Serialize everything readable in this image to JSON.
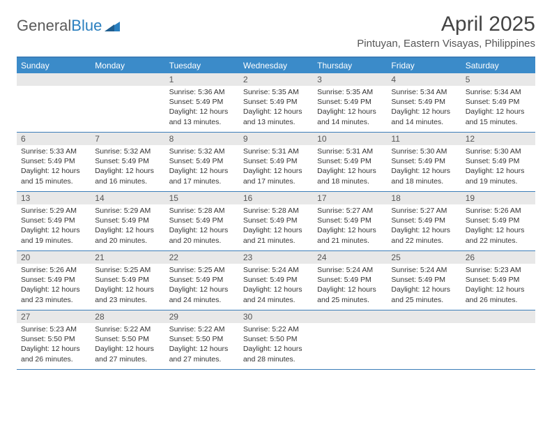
{
  "logo": {
    "text1": "General",
    "text2": "Blue"
  },
  "title": "April 2025",
  "location": "Pintuyan, Eastern Visayas, Philippines",
  "colors": {
    "header_bg": "#3b8bc9",
    "header_text": "#ffffff",
    "border": "#3b7db8",
    "daynum_bg": "#e8e8e8",
    "body_text": "#333333",
    "logo_gray": "#5a5a5a",
    "logo_blue": "#2a7fbf"
  },
  "day_names": [
    "Sunday",
    "Monday",
    "Tuesday",
    "Wednesday",
    "Thursday",
    "Friday",
    "Saturday"
  ],
  "weeks": [
    [
      null,
      null,
      {
        "n": "1",
        "sr": "5:36 AM",
        "ss": "5:49 PM",
        "dl": "12 hours and 13 minutes."
      },
      {
        "n": "2",
        "sr": "5:35 AM",
        "ss": "5:49 PM",
        "dl": "12 hours and 13 minutes."
      },
      {
        "n": "3",
        "sr": "5:35 AM",
        "ss": "5:49 PM",
        "dl": "12 hours and 14 minutes."
      },
      {
        "n": "4",
        "sr": "5:34 AM",
        "ss": "5:49 PM",
        "dl": "12 hours and 14 minutes."
      },
      {
        "n": "5",
        "sr": "5:34 AM",
        "ss": "5:49 PM",
        "dl": "12 hours and 15 minutes."
      }
    ],
    [
      {
        "n": "6",
        "sr": "5:33 AM",
        "ss": "5:49 PM",
        "dl": "12 hours and 15 minutes."
      },
      {
        "n": "7",
        "sr": "5:32 AM",
        "ss": "5:49 PM",
        "dl": "12 hours and 16 minutes."
      },
      {
        "n": "8",
        "sr": "5:32 AM",
        "ss": "5:49 PM",
        "dl": "12 hours and 17 minutes."
      },
      {
        "n": "9",
        "sr": "5:31 AM",
        "ss": "5:49 PM",
        "dl": "12 hours and 17 minutes."
      },
      {
        "n": "10",
        "sr": "5:31 AM",
        "ss": "5:49 PM",
        "dl": "12 hours and 18 minutes."
      },
      {
        "n": "11",
        "sr": "5:30 AM",
        "ss": "5:49 PM",
        "dl": "12 hours and 18 minutes."
      },
      {
        "n": "12",
        "sr": "5:30 AM",
        "ss": "5:49 PM",
        "dl": "12 hours and 19 minutes."
      }
    ],
    [
      {
        "n": "13",
        "sr": "5:29 AM",
        "ss": "5:49 PM",
        "dl": "12 hours and 19 minutes."
      },
      {
        "n": "14",
        "sr": "5:29 AM",
        "ss": "5:49 PM",
        "dl": "12 hours and 20 minutes."
      },
      {
        "n": "15",
        "sr": "5:28 AM",
        "ss": "5:49 PM",
        "dl": "12 hours and 20 minutes."
      },
      {
        "n": "16",
        "sr": "5:28 AM",
        "ss": "5:49 PM",
        "dl": "12 hours and 21 minutes."
      },
      {
        "n": "17",
        "sr": "5:27 AM",
        "ss": "5:49 PM",
        "dl": "12 hours and 21 minutes."
      },
      {
        "n": "18",
        "sr": "5:27 AM",
        "ss": "5:49 PM",
        "dl": "12 hours and 22 minutes."
      },
      {
        "n": "19",
        "sr": "5:26 AM",
        "ss": "5:49 PM",
        "dl": "12 hours and 22 minutes."
      }
    ],
    [
      {
        "n": "20",
        "sr": "5:26 AM",
        "ss": "5:49 PM",
        "dl": "12 hours and 23 minutes."
      },
      {
        "n": "21",
        "sr": "5:25 AM",
        "ss": "5:49 PM",
        "dl": "12 hours and 23 minutes."
      },
      {
        "n": "22",
        "sr": "5:25 AM",
        "ss": "5:49 PM",
        "dl": "12 hours and 24 minutes."
      },
      {
        "n": "23",
        "sr": "5:24 AM",
        "ss": "5:49 PM",
        "dl": "12 hours and 24 minutes."
      },
      {
        "n": "24",
        "sr": "5:24 AM",
        "ss": "5:49 PM",
        "dl": "12 hours and 25 minutes."
      },
      {
        "n": "25",
        "sr": "5:24 AM",
        "ss": "5:49 PM",
        "dl": "12 hours and 25 minutes."
      },
      {
        "n": "26",
        "sr": "5:23 AM",
        "ss": "5:49 PM",
        "dl": "12 hours and 26 minutes."
      }
    ],
    [
      {
        "n": "27",
        "sr": "5:23 AM",
        "ss": "5:50 PM",
        "dl": "12 hours and 26 minutes."
      },
      {
        "n": "28",
        "sr": "5:22 AM",
        "ss": "5:50 PM",
        "dl": "12 hours and 27 minutes."
      },
      {
        "n": "29",
        "sr": "5:22 AM",
        "ss": "5:50 PM",
        "dl": "12 hours and 27 minutes."
      },
      {
        "n": "30",
        "sr": "5:22 AM",
        "ss": "5:50 PM",
        "dl": "12 hours and 28 minutes."
      },
      null,
      null,
      null
    ]
  ],
  "labels": {
    "sunrise": "Sunrise:",
    "sunset": "Sunset:",
    "daylight": "Daylight:"
  }
}
